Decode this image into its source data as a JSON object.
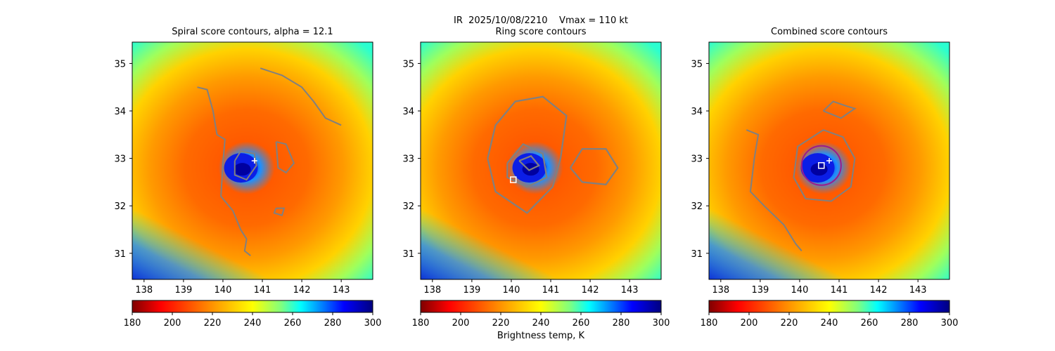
{
  "figure": {
    "suptitle": "IR  2025/10/08/2210    Vmax = 110 kt",
    "colorbar_label": "Brightness temp, K",
    "colormap": "jet_r"
  },
  "chart_data": [
    {
      "type": "heatmap",
      "title": "Spiral score contours, alpha = 12.1",
      "xlim": [
        137.7,
        143.8
      ],
      "ylim": [
        30.45,
        35.45
      ],
      "xticks": [
        138,
        139,
        140,
        141,
        142,
        143
      ],
      "yticks": [
        31,
        32,
        33,
        34,
        35
      ],
      "colorbar": {
        "min": 180,
        "max": 300,
        "ticks": [
          180,
          200,
          220,
          240,
          260,
          280,
          300
        ]
      },
      "markers": [
        {
          "shape": "plus",
          "lon": 140.8,
          "lat": 32.95
        }
      ],
      "contours": [
        {
          "points": [
            [
              139.35,
              34.5
            ],
            [
              139.6,
              34.45
            ],
            [
              139.75,
              34.0
            ],
            [
              139.85,
              33.5
            ],
            [
              140.05,
              33.4
            ],
            [
              140.0,
              32.9
            ],
            [
              139.95,
              32.2
            ],
            [
              140.25,
              31.9
            ],
            [
              140.45,
              31.5
            ],
            [
              140.6,
              31.3
            ],
            [
              140.55,
              31.05
            ],
            [
              140.7,
              30.95
            ]
          ]
        },
        {
          "points": [
            [
              140.95,
              34.9
            ],
            [
              141.5,
              34.75
            ],
            [
              142.0,
              34.5
            ],
            [
              142.3,
              34.2
            ],
            [
              142.6,
              33.85
            ],
            [
              143.0,
              33.7
            ]
          ]
        },
        {
          "points": [
            [
              140.3,
              32.95
            ],
            [
              140.45,
              33.15
            ],
            [
              140.8,
              33.1
            ],
            [
              140.85,
              32.85
            ],
            [
              140.6,
              32.55
            ],
            [
              140.3,
              32.65
            ],
            [
              140.3,
              32.95
            ]
          ]
        },
        {
          "points": [
            [
              141.35,
              33.35
            ],
            [
              141.6,
              33.3
            ],
            [
              141.8,
              32.9
            ],
            [
              141.6,
              32.7
            ],
            [
              141.4,
              32.8
            ],
            [
              141.35,
              33.35
            ]
          ]
        },
        {
          "points": [
            [
              141.35,
              31.95
            ],
            [
              141.55,
              31.95
            ],
            [
              141.5,
              31.8
            ],
            [
              141.3,
              31.85
            ],
            [
              141.35,
              31.95
            ]
          ]
        }
      ]
    },
    {
      "type": "heatmap",
      "title": "Ring score contours",
      "xlim": [
        137.7,
        143.8
      ],
      "ylim": [
        30.45,
        35.45
      ],
      "xticks": [
        138,
        139,
        140,
        141,
        142,
        143
      ],
      "yticks": [
        31,
        32,
        33,
        34,
        35
      ],
      "colorbar": {
        "min": 180,
        "max": 300,
        "ticks": [
          180,
          200,
          220,
          240,
          260,
          280,
          300
        ]
      },
      "markers": [
        {
          "shape": "square",
          "lon": 140.05,
          "lat": 32.55
        }
      ],
      "contours": [
        {
          "points": [
            [
              139.4,
              33.0
            ],
            [
              139.6,
              33.7
            ],
            [
              140.1,
              34.2
            ],
            [
              140.8,
              34.3
            ],
            [
              141.4,
              33.9
            ],
            [
              141.25,
              33.0
            ],
            [
              141.05,
              32.4
            ],
            [
              140.4,
              31.85
            ],
            [
              139.6,
              32.3
            ],
            [
              139.4,
              33.0
            ]
          ]
        },
        {
          "points": [
            [
              139.9,
              32.9
            ],
            [
              140.3,
              33.3
            ],
            [
              140.8,
              33.1
            ],
            [
              140.9,
              32.6
            ],
            [
              140.4,
              32.4
            ],
            [
              139.9,
              32.6
            ],
            [
              139.9,
              32.9
            ]
          ]
        },
        {
          "points": [
            [
              141.5,
              32.8
            ],
            [
              141.8,
              33.2
            ],
            [
              142.4,
              33.2
            ],
            [
              142.7,
              32.8
            ],
            [
              142.4,
              32.45
            ],
            [
              141.8,
              32.5
            ],
            [
              141.5,
              32.8
            ]
          ]
        },
        {
          "points": [
            [
              140.2,
              32.95
            ],
            [
              140.5,
              33.05
            ],
            [
              140.7,
              32.85
            ],
            [
              140.45,
              32.75
            ],
            [
              140.2,
              32.95
            ]
          ]
        }
      ]
    },
    {
      "type": "heatmap",
      "title": "Combined score contours",
      "xlim": [
        137.7,
        143.8
      ],
      "ylim": [
        30.45,
        35.45
      ],
      "xticks": [
        138,
        139,
        140,
        141,
        142,
        143
      ],
      "yticks": [
        31,
        32,
        33,
        34,
        35
      ],
      "colorbar": {
        "min": 180,
        "max": 300,
        "ticks": [
          180,
          200,
          220,
          240,
          260,
          280,
          300
        ]
      },
      "markers": [
        {
          "shape": "plus",
          "lon": 140.75,
          "lat": 32.95
        },
        {
          "shape": "square",
          "lon": 140.55,
          "lat": 32.85
        }
      ],
      "circle": {
        "lon": 140.55,
        "lat": 32.85,
        "radius_deg": 0.5,
        "color": "#9b1c8c"
      },
      "contours": [
        {
          "points": [
            [
              138.65,
              33.6
            ],
            [
              138.95,
              33.5
            ],
            [
              138.85,
              33.0
            ],
            [
              138.75,
              32.3
            ],
            [
              139.1,
              32.0
            ],
            [
              139.6,
              31.6
            ],
            [
              139.9,
              31.2
            ],
            [
              140.05,
              31.05
            ]
          ]
        },
        {
          "points": [
            [
              140.6,
              33.6
            ],
            [
              141.1,
              33.45
            ],
            [
              141.4,
              33.0
            ],
            [
              141.3,
              32.4
            ],
            [
              140.8,
              32.1
            ],
            [
              140.15,
              32.15
            ],
            [
              139.85,
              32.6
            ],
            [
              139.95,
              33.25
            ],
            [
              140.6,
              33.6
            ]
          ]
        },
        {
          "points": [
            [
              140.6,
              34.0
            ],
            [
              140.85,
              34.2
            ],
            [
              141.2,
              34.1
            ],
            [
              141.4,
              34.05
            ],
            [
              141.05,
              33.85
            ],
            [
              140.6,
              34.0
            ]
          ]
        }
      ]
    }
  ]
}
